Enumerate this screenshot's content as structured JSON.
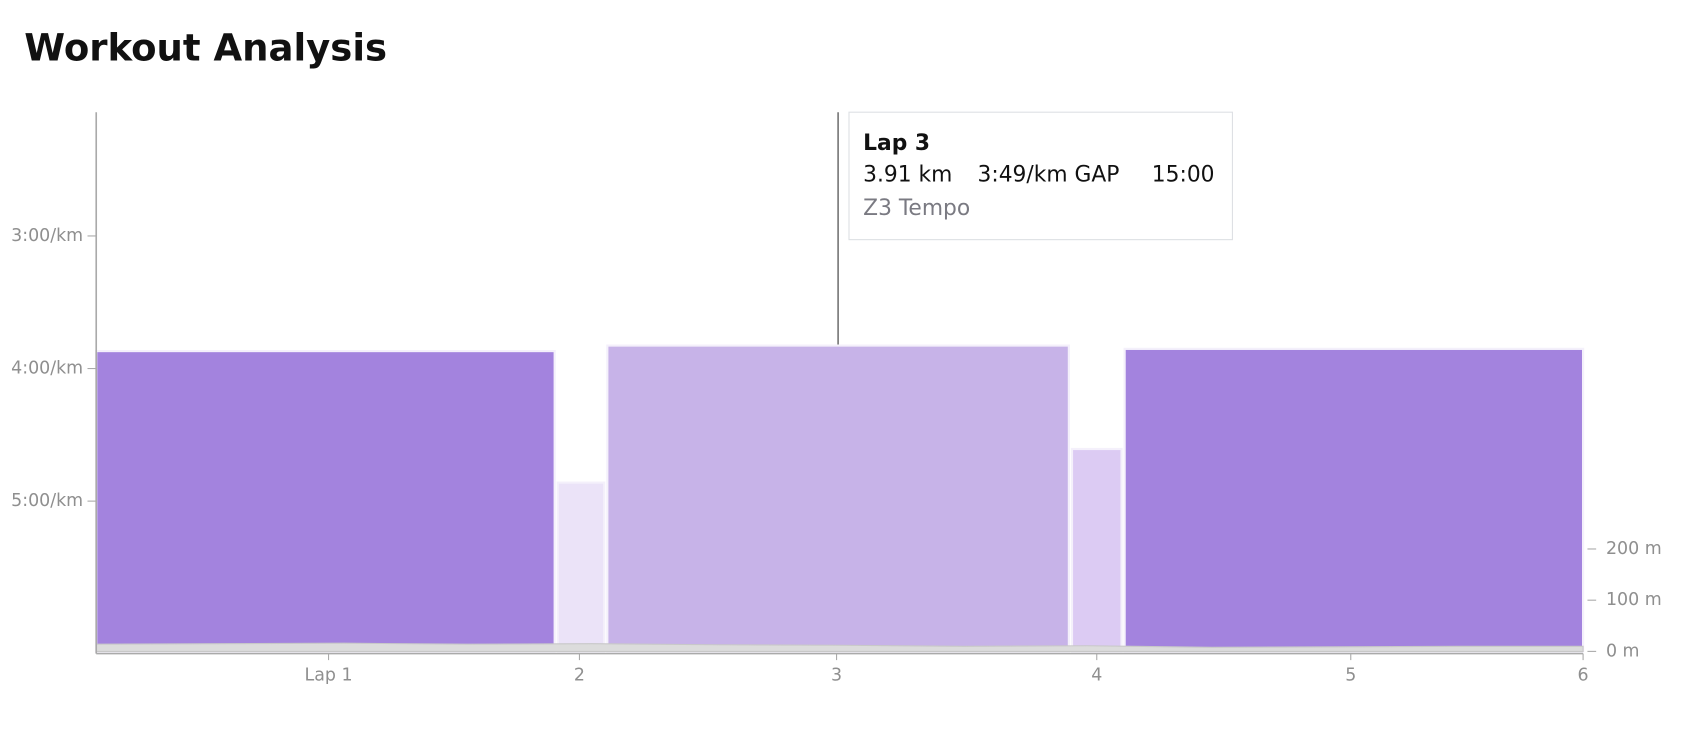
{
  "chart_data": {
    "type": "bar",
    "title": "Workout Analysis",
    "laps": [
      {
        "start": 0,
        "end": 14.8,
        "value": 232.1,
        "color": "#a383de"
      },
      {
        "start": 14.9,
        "end": 16.4,
        "value": 291.6,
        "color": "#ebe3f8"
      },
      {
        "start": 16.5,
        "end": 31.4,
        "value": 229.6,
        "color": "#c7b3e8"
      },
      {
        "start": 31.5,
        "end": 33.1,
        "value": 276.4,
        "color": "#dccbf3"
      },
      {
        "start": 33.2,
        "end": 48,
        "value": 231.1,
        "color": "#a383de"
      }
    ],
    "elevation": {
      "axis": "y2",
      "color": "#dcdcdc",
      "x": [
        0,
        4,
        8,
        12,
        16,
        20,
        24,
        28,
        32,
        36,
        40,
        44,
        48
      ],
      "values": [
        14,
        15,
        16,
        14,
        15,
        13,
        12,
        10,
        11,
        8,
        9,
        10,
        10
      ]
    },
    "xlim": [
      0,
      48
    ],
    "xticks": [
      {
        "value": 7.5,
        "label": "Lap 1"
      },
      {
        "value": 15.6,
        "label": "2"
      },
      {
        "value": 23.9,
        "label": "3"
      },
      {
        "value": 32.3,
        "label": "4"
      },
      {
        "value": 40.5,
        "label": "5"
      },
      {
        "value": 48,
        "label": "6"
      }
    ],
    "ylim": [
      368,
      124
    ],
    "yticks": [
      {
        "value": 180,
        "label": "3:00/km"
      },
      {
        "value": 240,
        "label": "4:00/km"
      },
      {
        "value": 300,
        "label": "5:00/km"
      }
    ],
    "y2lim": [
      0,
      1053
    ],
    "y2ticks": [
      {
        "value": 0,
        "label": "0 m"
      },
      {
        "value": 100,
        "label": "100 m"
      },
      {
        "value": 200,
        "label": "200 m"
      }
    ],
    "tooltip": {
      "title": "Lap 3",
      "distance": "3.91 km",
      "pace": "3:49/km GAP",
      "time": "15:00",
      "zone": "Z3 Tempo"
    }
  }
}
